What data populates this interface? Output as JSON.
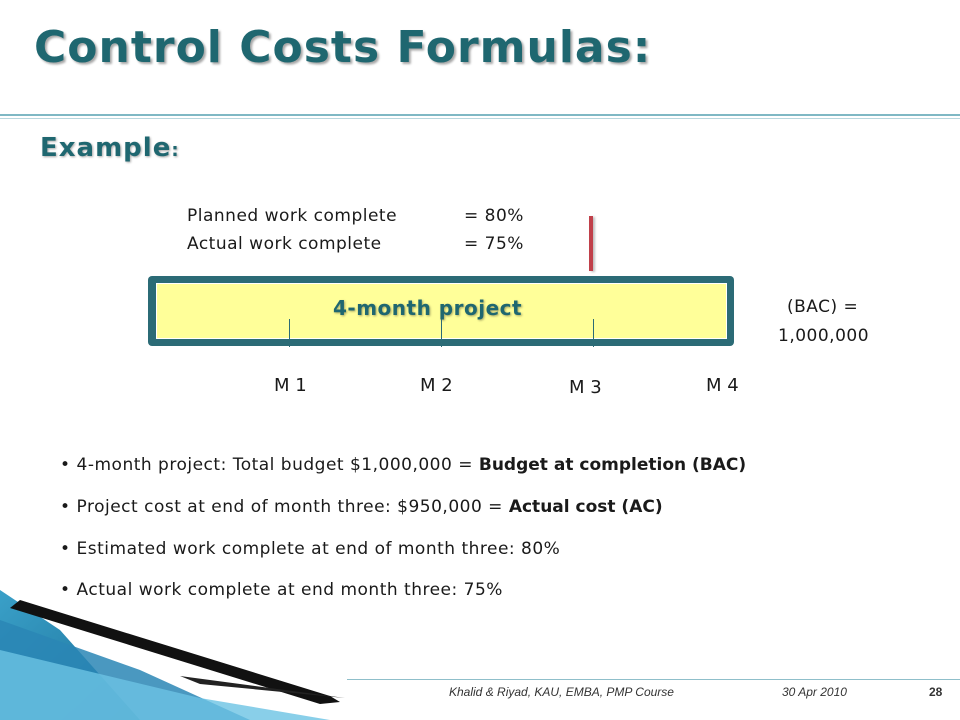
{
  "slide": {
    "title": "Control Costs Formulas:",
    "subtitle": "Example",
    "subtitle_suffix": ":"
  },
  "progress": {
    "planned_label": "Planned work complete",
    "planned_value": "= 80%",
    "actual_label": "Actual work complete",
    "actual_value": "= 75%"
  },
  "project_bar": {
    "label": "4-month project",
    "bac_label": "(BAC) =",
    "bac_value": "1,000,000",
    "months": [
      "M 1",
      "M 2",
      "M 3",
      "M 4"
    ]
  },
  "bullets": [
    {
      "text": "4-month project: Total budget $1,000,000 = ",
      "bold": "Budget at completion (BAC)"
    },
    {
      "text": "Project cost at end of month three: $950,000 = ",
      "bold": "Actual cost (AC)"
    },
    {
      "text": "Estimated work complete at end of month three: 80%",
      "bold": ""
    },
    {
      "text": "Actual work complete at end month three: 75%",
      "bold": ""
    }
  ],
  "footer": {
    "authors": "Khalid & Riyad, KAU, EMBA, PMP Course",
    "date": "30 Apr 2010",
    "page": "28"
  },
  "colors": {
    "title": "#1f6770",
    "bar_fill": "#ffff99",
    "bar_border": "#2b6b76",
    "status_line": "#c0404a"
  }
}
